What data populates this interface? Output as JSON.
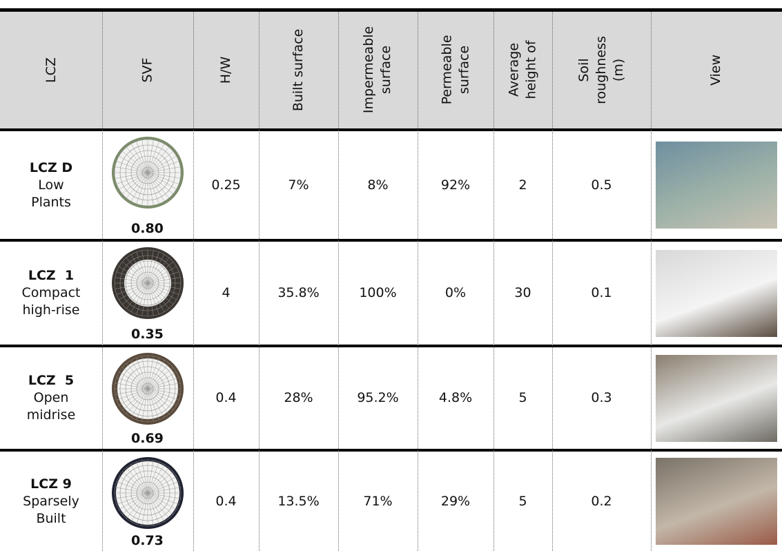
{
  "table": {
    "header": [
      [
        "LCZ"
      ],
      [
        "SVF"
      ],
      [
        "H/W"
      ],
      [
        "Built surface"
      ],
      [
        "Impermeable",
        "surface"
      ],
      [
        "Permeable",
        "surface"
      ],
      [
        "Average",
        "height of"
      ],
      [
        "Soil",
        "roughness",
        "(m)"
      ],
      [
        "View"
      ]
    ],
    "rows": [
      {
        "lcz": "LCZ D",
        "description": [
          "Low",
          "Plants"
        ],
        "svf": "0.80",
        "cells": [
          "0.25",
          "7%",
          "8%",
          "92%",
          "2",
          "0.5"
        ]
      },
      {
        "lcz": "LCZ  1",
        "description": [
          "Compact",
          "high-rise"
        ],
        "svf": "0.35",
        "cells": [
          "4",
          "35.8%",
          "100%",
          "0%",
          "30",
          "0.1"
        ]
      },
      {
        "lcz": "LCZ  5",
        "description": [
          "Open",
          "midrise"
        ],
        "svf": "0.69",
        "cells": [
          "0.4",
          "28%",
          "95.2%",
          "4.8%",
          "5",
          "0.3"
        ]
      },
      {
        "lcz": "LCZ 9",
        "description": [
          "Sparsely",
          "Built"
        ],
        "svf": "0.73",
        "cells": [
          "0.4",
          "13.5%",
          "71%",
          "29%",
          "5",
          "0.2"
        ]
      }
    ]
  }
}
